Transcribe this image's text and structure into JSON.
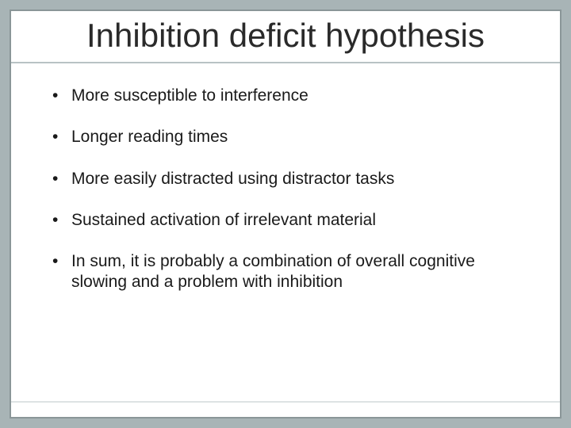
{
  "slide": {
    "title": "Inhibition deficit hypothesis",
    "bullets": [
      "More susceptible to interference",
      "Longer reading times",
      "More easily distracted using distractor tasks",
      "Sustained activation of irrelevant material",
      "In sum, it is probably a combination of overall cognitive slowing and a problem with inhibition"
    ],
    "style": {
      "background_color": "#a8b4b6",
      "frame_background": "#ffffff",
      "frame_border_color": "#8a9698",
      "divider_top_color": "#b8c2c4",
      "divider_bottom_color": "#dde3e4",
      "title_fontsize": 42,
      "title_color": "#2a2a2a",
      "bullet_fontsize": 21,
      "bullet_color": "#1a1a1a",
      "bullet_spacing": 26,
      "frame_width": 696,
      "frame_height": 516,
      "outer_width": 720,
      "outer_height": 540
    }
  }
}
